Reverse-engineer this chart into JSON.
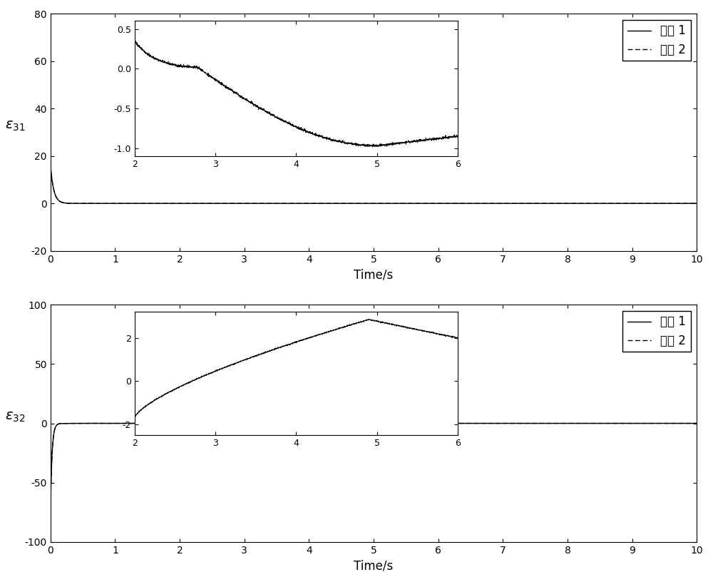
{
  "top_plot": {
    "ylabel": "$\\varepsilon_{31}$",
    "xlabel": "Time/s",
    "xlim": [
      0,
      10
    ],
    "ylim": [
      -20,
      80
    ],
    "yticks": [
      -20,
      0,
      20,
      40,
      60,
      80
    ],
    "xticks": [
      0,
      1,
      2,
      3,
      4,
      5,
      6,
      7,
      8,
      9,
      10
    ],
    "inset": {
      "xlim": [
        2,
        6
      ],
      "ylim": [
        -1.1,
        0.6
      ],
      "yticks": [
        -1,
        -0.5,
        0,
        0.5
      ],
      "xticks": [
        2,
        3,
        4,
        5,
        6
      ]
    }
  },
  "bottom_plot": {
    "ylabel": "$\\varepsilon_{32}$",
    "xlabel": "Time/s",
    "xlim": [
      0,
      10
    ],
    "ylim": [
      -100,
      100
    ],
    "yticks": [
      -100,
      -50,
      0,
      50,
      100
    ],
    "xticks": [
      0,
      1,
      2,
      3,
      4,
      5,
      6,
      7,
      8,
      9,
      10
    ],
    "inset": {
      "xlim": [
        2,
        6
      ],
      "ylim": [
        -2.5,
        3.2
      ],
      "yticks": [
        -2,
        0,
        2
      ],
      "xticks": [
        2,
        3,
        4,
        5,
        6
      ]
    }
  },
  "legend_labels": [
    "方法 1",
    "方法 2"
  ],
  "line_color": "#000000",
  "bg_color": "#ffffff",
  "font_size": 12
}
